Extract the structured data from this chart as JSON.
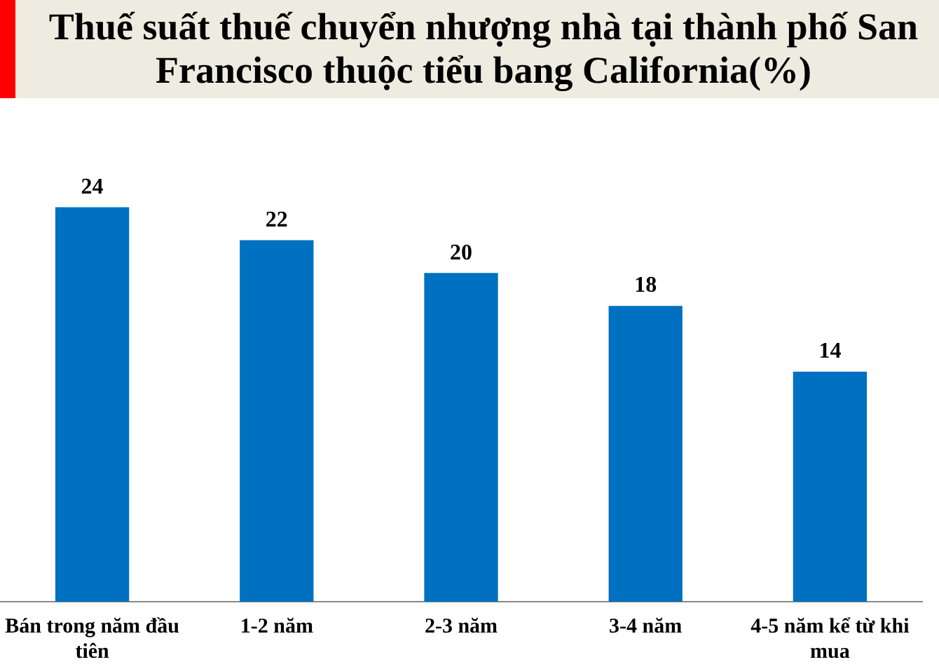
{
  "chart_data": {
    "type": "bar",
    "title": "Thuế suất thuế chuyển nhượng nhà tại thành phố San Francisco thuộc tiểu bang California(%)",
    "categories": [
      "Bán trong năm đầu tiên",
      "1-2 năm",
      "2-3 năm",
      "3-4 năm",
      "4-5 năm kể từ khi mua"
    ],
    "values": [
      24,
      22,
      20,
      18,
      14
    ],
    "color": "#0070c0",
    "data_labels": true,
    "tick_labels": "x",
    "grid": false,
    "legend": false
  }
}
